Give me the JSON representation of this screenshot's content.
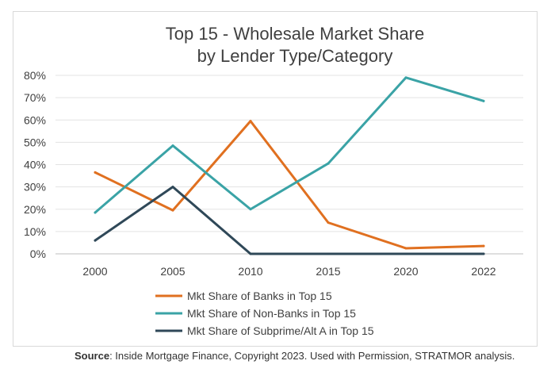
{
  "chart_data": {
    "type": "line",
    "title_lines": [
      "Top 15 - Wholesale Market Share",
      "by Lender Type/Category"
    ],
    "x": [
      "2000",
      "2005",
      "2010",
      "2015",
      "2020",
      "2022"
    ],
    "ylim": [
      0,
      80
    ],
    "yticks": [
      0,
      10,
      20,
      30,
      40,
      50,
      60,
      70,
      80
    ],
    "ytick_labels": [
      "0%",
      "10%",
      "20%",
      "30%",
      "40%",
      "50%",
      "60%",
      "70%",
      "80%"
    ],
    "grid": true,
    "legend_position": "bottom",
    "series": [
      {
        "name": "Mkt Share of Banks in Top 15",
        "color": "#e07020",
        "values": [
          36.5,
          19.5,
          59.5,
          14,
          2.5,
          3.5
        ]
      },
      {
        "name": "Mkt Share of Non-Banks in Top 15",
        "color": "#3aa3a6",
        "values": [
          18.5,
          48.5,
          20,
          40.5,
          79,
          68.5
        ]
      },
      {
        "name": "Mkt Share of Subprime/Alt A in Top 15",
        "color": "#2f4858",
        "values": [
          6,
          30,
          0,
          0,
          0,
          0
        ]
      }
    ]
  },
  "source": {
    "label": "Source",
    "text": ": Inside Mortgage Finance, Copyright 2023. Used with Permission, STRATMOR analysis."
  }
}
